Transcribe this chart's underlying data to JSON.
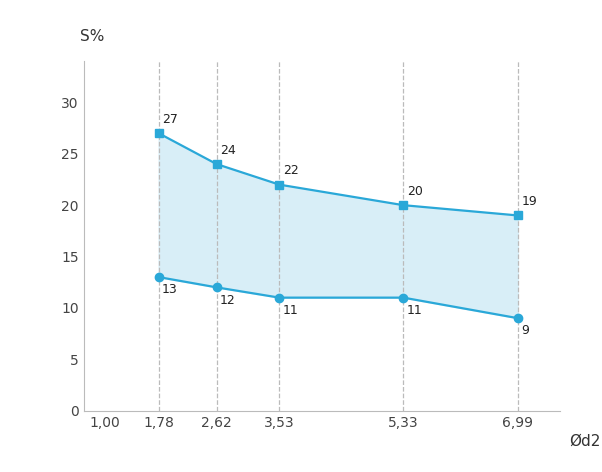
{
  "x_values": [
    1.78,
    2.62,
    3.53,
    5.33,
    6.99
  ],
  "upper_values": [
    27,
    24,
    22,
    20,
    19
  ],
  "lower_values": [
    13,
    12,
    11,
    11,
    9
  ],
  "x_ticks": [
    1.0,
    1.78,
    2.62,
    3.53,
    5.33,
    6.99
  ],
  "x_tick_labels": [
    "1,00",
    "1,78",
    "2,62",
    "3,53",
    "5,33",
    "6,99"
  ],
  "y_ticks": [
    0,
    5,
    10,
    15,
    20,
    25,
    30
  ],
  "xlim": [
    0.7,
    7.6
  ],
  "ylim": [
    0,
    34
  ],
  "xlabel": "Ød2",
  "ylabel": "S%",
  "line_color": "#2AA8D8",
  "fill_color": "#D8EEF7",
  "fill_alpha": 1.0,
  "upper_marker": "s",
  "lower_marker": "o",
  "marker_size": 6,
  "line_width": 1.6,
  "dashed_line_color": "#BBBBBB",
  "background_color": "#ffffff",
  "font_size_ticks": 10,
  "font_size_annot": 9,
  "font_size_ylabel": 11,
  "font_size_xlabel": 11
}
